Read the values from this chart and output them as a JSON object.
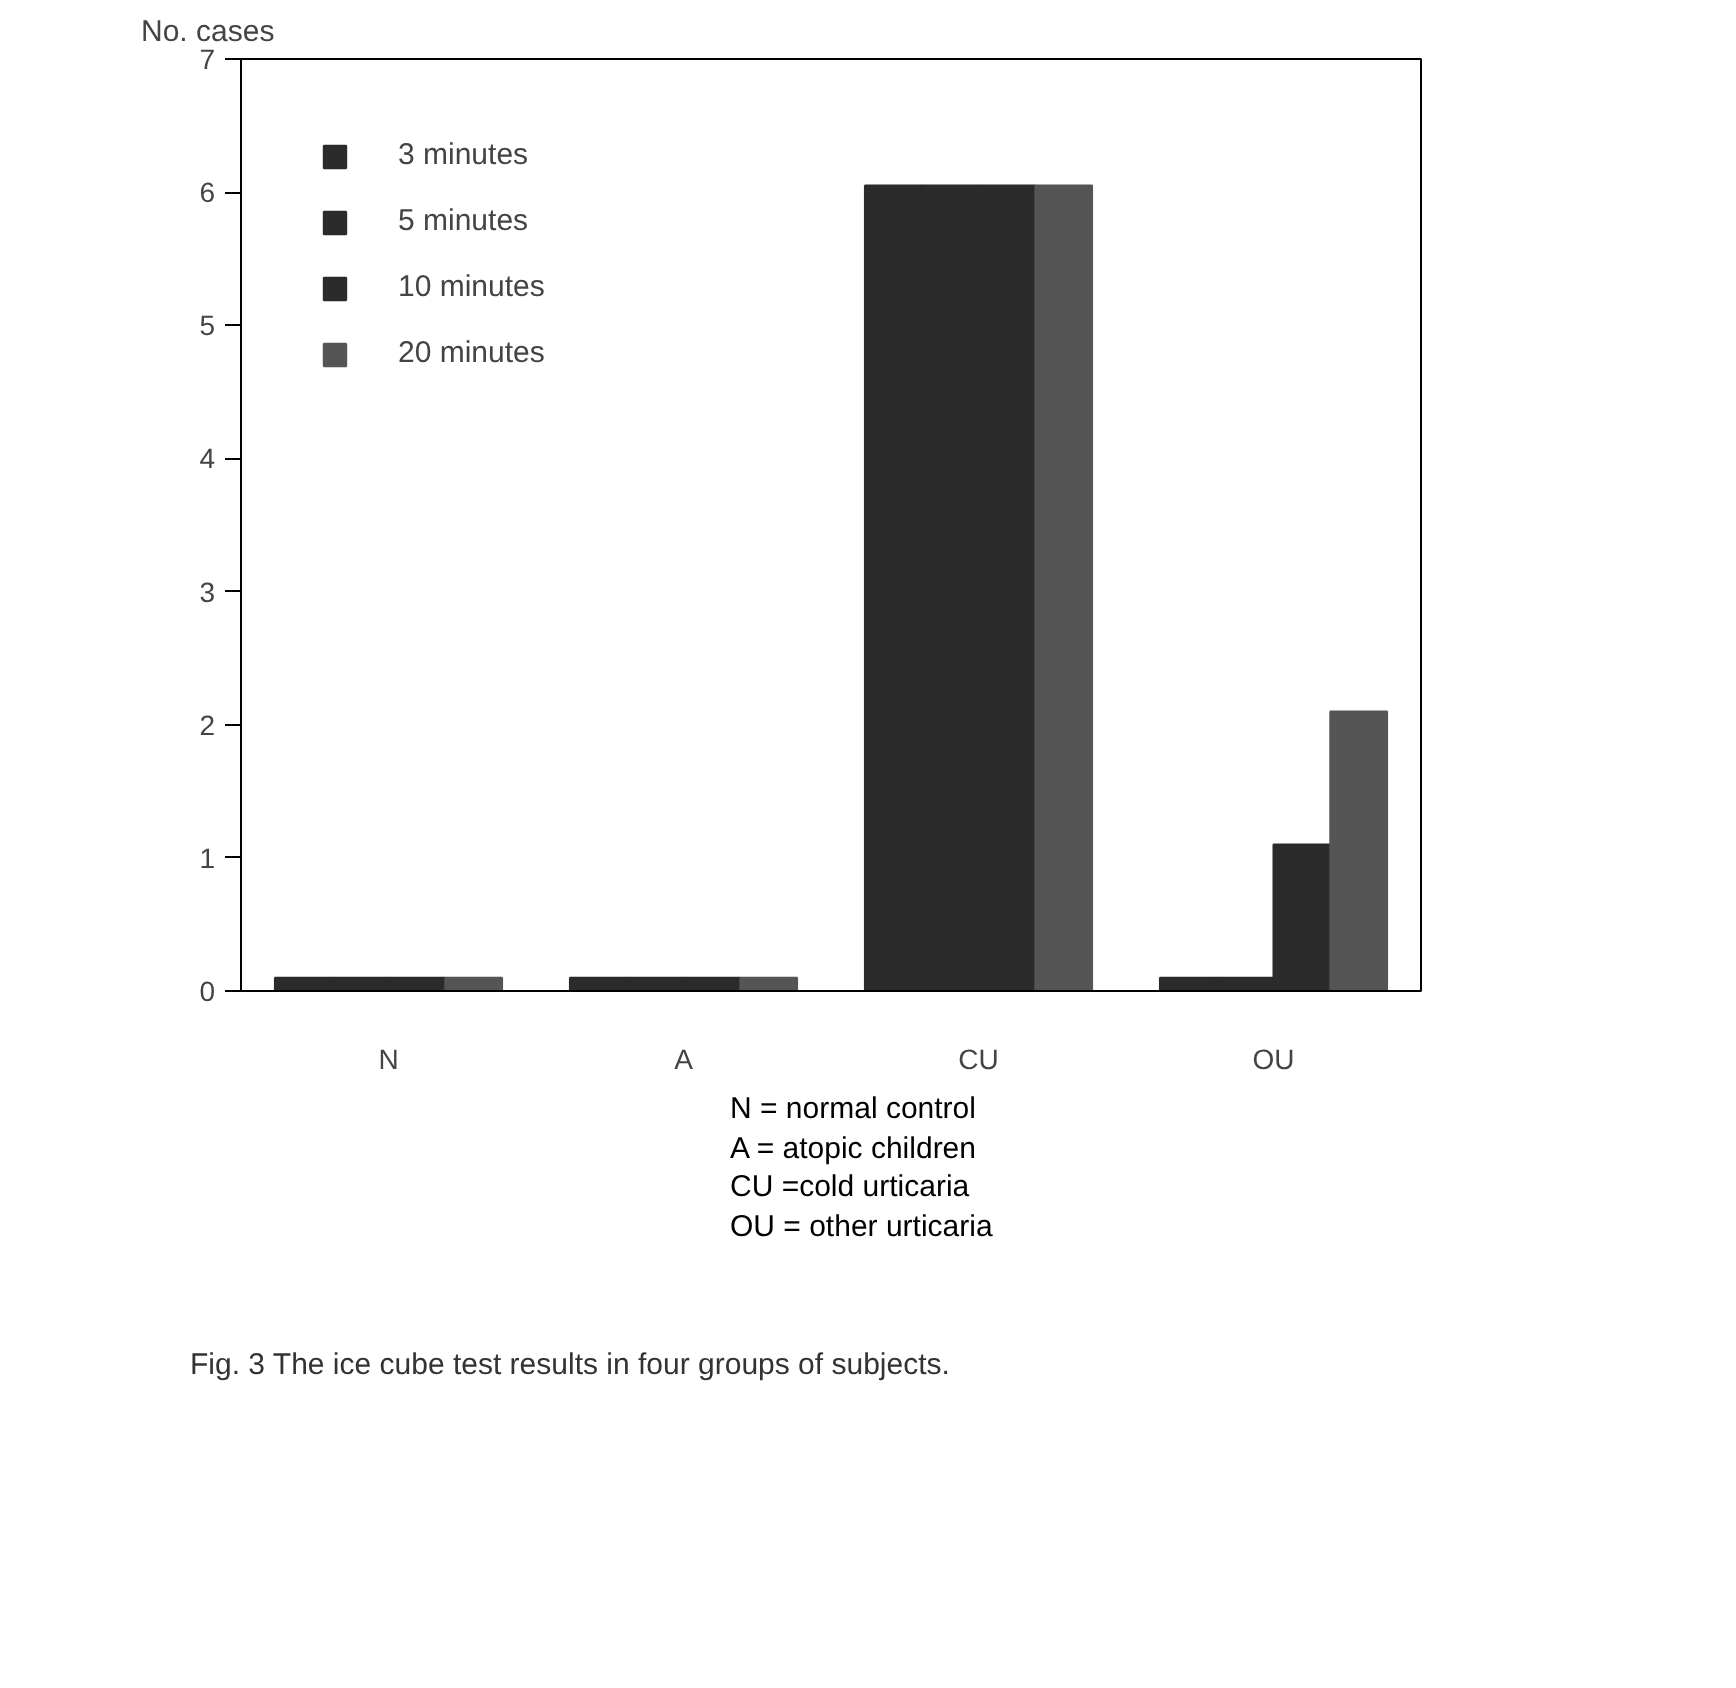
{
  "chart_data": {
    "type": "bar",
    "ylabel": "No. cases",
    "categories": [
      "N",
      "A",
      "CU",
      "OU"
    ],
    "series": [
      {
        "name": "3 minutes",
        "color": "#2b2b2b",
        "values": [
          0.1,
          0.1,
          6.05,
          0.1
        ]
      },
      {
        "name": "5 minutes",
        "color": "#2b2b2b",
        "values": [
          0.1,
          0.1,
          6.05,
          0.1
        ]
      },
      {
        "name": "10 minutes",
        "color": "#2b2b2b",
        "values": [
          0.1,
          0.1,
          6.05,
          1.1
        ]
      },
      {
        "name": "20 minutes",
        "color": "#555555",
        "values": [
          0.1,
          0.1,
          6.05,
          2.1
        ]
      }
    ],
    "ylim": [
      0,
      7
    ],
    "yticks": [
      0,
      1,
      2,
      3,
      4,
      5,
      6,
      7
    ],
    "grid": false,
    "legend": "top left",
    "annotations": [
      "N = normal control\nA = atopic children\nCU =cold urticaria\nOU = other urticaria",
      "Fig. 3   The ice cube test results in four groups of subjects."
    ]
  }
}
